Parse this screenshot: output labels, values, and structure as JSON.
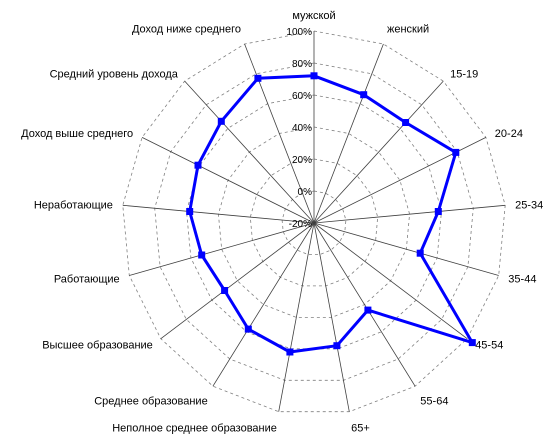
{
  "chart_data": {
    "type": "radar",
    "title": "",
    "axis_range": [
      -20,
      100
    ],
    "ticks": [
      "-20%",
      "0%",
      "20%",
      "40%",
      "60%",
      "80%",
      "100%"
    ],
    "grid": true,
    "legend": "none",
    "categories": [
      "мужской",
      "женский",
      "15-19",
      "20-24",
      "25-34",
      "35-44",
      "45-54",
      "55-64",
      "65+",
      "Неполное среднее образование",
      "Среднее образование",
      "Высшее образование",
      "Работающие",
      "Неработающие",
      "Доход выше среднего",
      "Средний уровень дохода",
      "Доход ниже среднего"
    ],
    "series": [
      {
        "values": [
          72,
          66,
          65,
          79,
          58,
          49,
          104,
          44,
          58,
          62,
          58,
          50,
          53,
          58,
          61,
          66,
          77
        ],
        "color": "#0000ff"
      }
    ]
  }
}
